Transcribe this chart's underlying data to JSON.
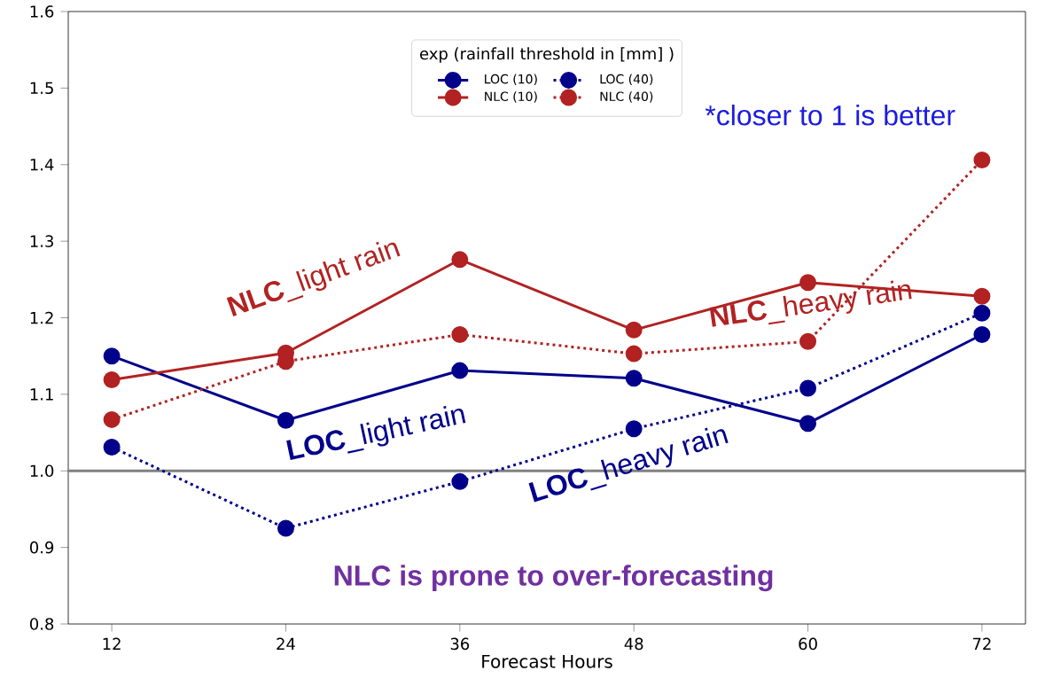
{
  "chart_data": {
    "type": "line",
    "x": [
      12,
      24,
      36,
      48,
      60,
      72
    ],
    "xlabel": "Forecast Hours",
    "xlim": [
      9,
      75
    ],
    "xticks": [
      12,
      24,
      36,
      48,
      60,
      72
    ],
    "ylim": [
      0.8,
      1.6
    ],
    "yticks": [
      0.8,
      0.9,
      {
        "value": 1.0,
        "label": "1.0"
      },
      1.1,
      1.2,
      1.3,
      1.4,
      1.5,
      1.6
    ],
    "legend_title": "exp (rainfall threshold in [mm] )",
    "legend": "top",
    "marker": "circle",
    "grid": false,
    "series": [
      {
        "name": "LOC (10)",
        "color": "#00008b",
        "line_style": "solid",
        "values": [
          1.15,
          1.066,
          1.131,
          1.121,
          1.062,
          1.178
        ]
      },
      {
        "name": "LOC (40)",
        "color": "#00008b",
        "line_style": "dotted",
        "values": [
          1.031,
          0.925,
          0.986,
          1.055,
          1.108,
          1.206
        ]
      },
      {
        "name": "NLC (10)",
        "color": "#b22222",
        "line_style": "solid",
        "values": [
          1.119,
          1.154,
          1.276,
          1.184,
          1.246,
          1.228
        ]
      },
      {
        "name": "NLC (40)",
        "color": "#b22222",
        "line_style": "dotted",
        "values": [
          1.067,
          1.143,
          1.178,
          1.153,
          1.169,
          1.406
        ]
      }
    ],
    "ref_lines": [
      {
        "axis": "y",
        "value": 1.0,
        "color": "#808080"
      }
    ],
    "annotations": [
      "**NLC**_light rain",
      "**NLC**_heavy rain",
      "**LOC**_light rain",
      "**LOC**_heavy rain",
      "*closer to 1 is better",
      "**NLC is prone to over-forecasting**"
    ]
  }
}
